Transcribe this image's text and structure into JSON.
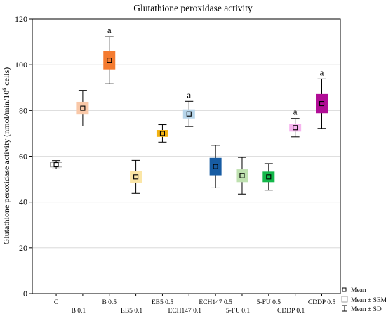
{
  "chart_data": {
    "type": "box",
    "title": "Glutathione peroxidase activity",
    "xlabel": "",
    "ylabel_main": "Glutathione peroxidase activity (nmol/min/10",
    "ylabel_sup": "6",
    "ylabel_end": " cells)",
    "ylim": [
      0,
      120
    ],
    "yticks": [
      0,
      20,
      40,
      60,
      80,
      100,
      120
    ],
    "grid": "horizontal",
    "legend_position": "bottom-right",
    "legend": {
      "mean": "Mean",
      "sem": "Mean ± SEM",
      "sd": "Mean ± SD"
    },
    "groups": [
      {
        "label": "C",
        "mean": 56.3,
        "sem": 1.0,
        "sd": 1.8,
        "color": "#ffffff",
        "sig": ""
      },
      {
        "label": "B 0.1",
        "mean": 81.0,
        "sem": 2.8,
        "sd": 7.8,
        "color": "#f9c8a8",
        "sig": ""
      },
      {
        "label": "B 0.5",
        "mean": 102.0,
        "sem": 4.0,
        "sd": 10.3,
        "color": "#f47b30",
        "sig": "a"
      },
      {
        "label": "EB5 0.1",
        "mean": 51.0,
        "sem": 2.5,
        "sd": 7.2,
        "color": "#fbe6a6",
        "sig": ""
      },
      {
        "label": "EB5 0.5",
        "mean": 70.0,
        "sem": 1.5,
        "sd": 3.8,
        "color": "#f3b312",
        "sig": ""
      },
      {
        "label": "ECH147 0.1",
        "mean": 78.5,
        "sem": 2.0,
        "sd": 5.5,
        "color": "#b7d5ea",
        "sig": "a"
      },
      {
        "label": "ECH147 0.5",
        "mean": 55.5,
        "sem": 3.8,
        "sd": 9.3,
        "color": "#175ca3",
        "sig": ""
      },
      {
        "label": "5-FU 0.1",
        "mean": 51.5,
        "sem": 2.8,
        "sd": 8.0,
        "color": "#bfe1b0",
        "sig": ""
      },
      {
        "label": "5-FU 0.5",
        "mean": 51.0,
        "sem": 2.3,
        "sd": 5.8,
        "color": "#14b84a",
        "sig": ""
      },
      {
        "label": "CDDP 0.1",
        "mean": 72.5,
        "sem": 1.7,
        "sd": 4.0,
        "color": "#f6b5ef",
        "sig": "a"
      },
      {
        "label": "CDDP 0.5",
        "mean": 83.0,
        "sem": 4.2,
        "sd": 10.8,
        "color": "#b10d96",
        "sig": "a"
      }
    ]
  }
}
